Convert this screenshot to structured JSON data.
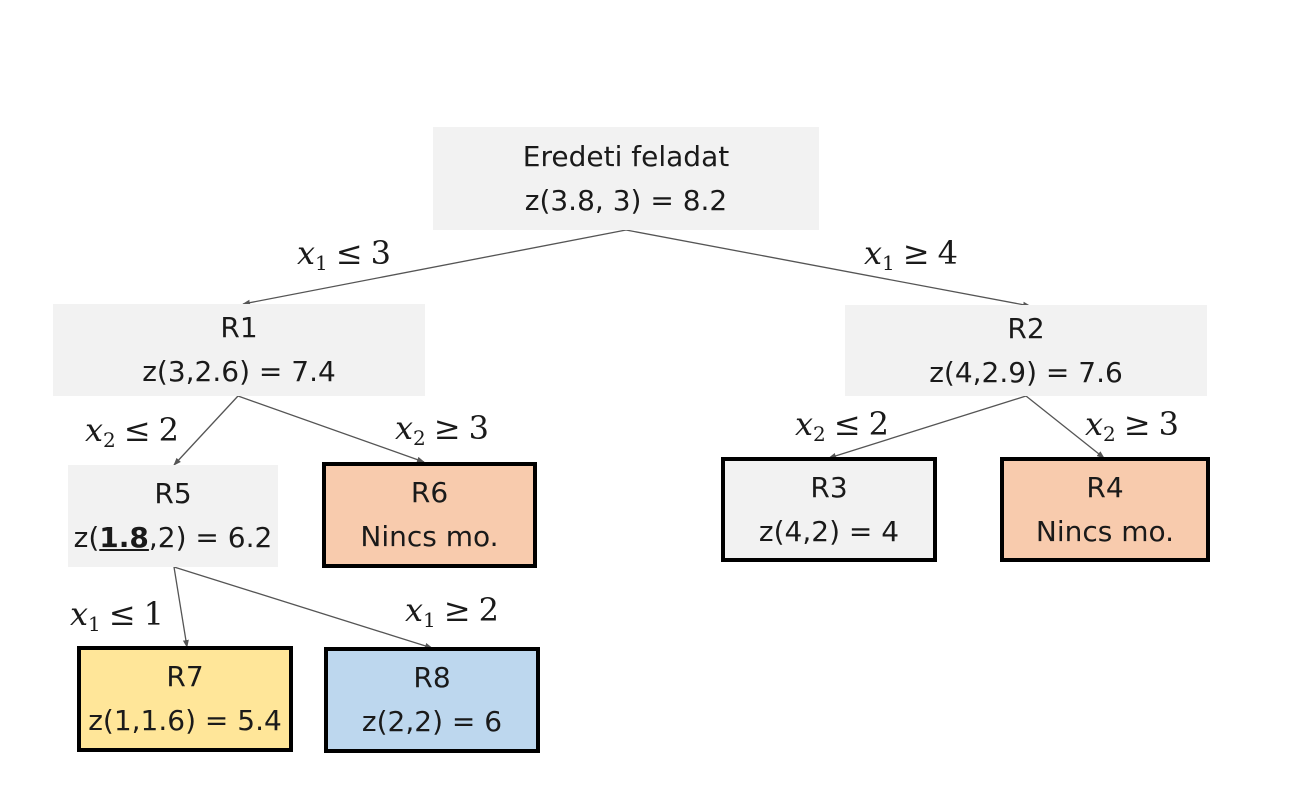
{
  "colors": {
    "plain_box": "#f2f2f2",
    "infeasible_box": "#f8cbad",
    "best_leaf": "#ffe699",
    "integer_leaf": "#bdd7ee",
    "leaf_border": "#000000",
    "edge": "#555555"
  },
  "nodes": {
    "root": {
      "line1": "Eredeti feladat",
      "line2": "z(3.8, 3) = 8.2"
    },
    "r1": {
      "line1": "R1",
      "line2": "z(3,2.6) = 7.4"
    },
    "r2": {
      "line1": "R2",
      "line2": "z(4,2.9) = 7.6"
    },
    "r5": {
      "line1": "R5",
      "line2_pre": "z(",
      "line2_bold": "1.8",
      "line2_post": ",2) = 6.2"
    },
    "r6": {
      "line1": "R6",
      "line2": "Nincs mo."
    },
    "r3": {
      "line1": "R3",
      "line2": "z(4,2) = 4"
    },
    "r4": {
      "line1": "R4",
      "line2": "Nincs mo."
    },
    "r7": {
      "line1": "R7",
      "line2": "z(1,1.6) = 5.4"
    },
    "r8": {
      "line1": "R8",
      "line2": "z(2,2) = 6"
    }
  },
  "branches": {
    "root_r1": {
      "var": "x",
      "sub": "1",
      "op": "≤",
      "val": "3"
    },
    "root_r2": {
      "var": "x",
      "sub": "1",
      "op": "≥",
      "val": "4"
    },
    "r1_r5": {
      "var": "x",
      "sub": "2",
      "op": "≤",
      "val": "2"
    },
    "r1_r6": {
      "var": "x",
      "sub": "2",
      "op": "≥",
      "val": "3"
    },
    "r2_r3": {
      "var": "x",
      "sub": "2",
      "op": "≤",
      "val": "2"
    },
    "r2_r4": {
      "var": "x",
      "sub": "2",
      "op": "≥",
      "val": "3"
    },
    "r5_r7": {
      "var": "x",
      "sub": "1",
      "op": "≤",
      "val": "1"
    },
    "r5_r8": {
      "var": "x",
      "sub": "1",
      "op": "≥",
      "val": "2"
    }
  }
}
